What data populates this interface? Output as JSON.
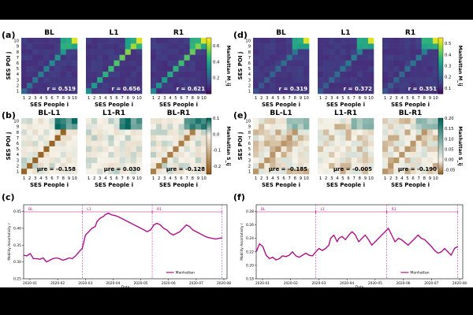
{
  "panels": {
    "a": "(a)",
    "b": "(b)",
    "c": "(c)",
    "d": "(d)",
    "e": "(e)",
    "f": "(f)"
  },
  "colors": {
    "diverging_neg": "#8c510a",
    "diverging_mid": "#f6f2e8",
    "diverging_pos": "#01665e",
    "series": "#b0108a"
  },
  "chart_data": [
    {
      "type": "heatmap",
      "id": "a",
      "panels": [
        {
          "title": "BL",
          "stat_label": "r = 0.519"
        },
        {
          "title": "L1",
          "stat_label": "r = 0.656"
        },
        {
          "title": "R1",
          "stat_label": "r = 0.621"
        }
      ],
      "xlabel": "SES People i",
      "ylabel": "SES POI j",
      "ticks": [
        "1",
        "2",
        "3",
        "4",
        "5",
        "6",
        "7",
        "8",
        "9",
        "10"
      ],
      "colorbar": {
        "label": "Manhattan M_ij",
        "range": [
          0.0,
          0.7
        ],
        "ticks": [
          "0.6",
          "0.4",
          "0.2"
        ],
        "colormap": "viridis"
      }
    },
    {
      "type": "heatmap",
      "id": "b",
      "panels": [
        {
          "title": "BL-L1",
          "stat_label": "μre = -0.158"
        },
        {
          "title": "L1-R1",
          "stat_label": "μre = 0.030"
        },
        {
          "title": "BL-R1",
          "stat_label": "μre = -0.128"
        }
      ],
      "xlabel": "SES People i",
      "ylabel": "SES POI j",
      "ticks": [
        "1",
        "2",
        "3",
        "4",
        "5",
        "6",
        "7",
        "8",
        "9",
        "10"
      ],
      "colorbar": {
        "label": "Manhattan S_ij",
        "range": [
          -0.25,
          0.1
        ],
        "ticks": [
          "0.1",
          "0.0",
          "-0.1",
          "-0.2"
        ],
        "colormap": "BrBG"
      }
    },
    {
      "type": "line",
      "id": "c",
      "series": [
        {
          "name": "Manhattan",
          "points": [
            [
              0,
              0.32
            ],
            [
              4,
              0.318
            ],
            [
              8,
              0.325
            ],
            [
              12,
              0.31
            ],
            [
              16,
              0.31
            ],
            [
              20,
              0.308
            ],
            [
              24,
              0.312
            ],
            [
              28,
              0.3
            ],
            [
              32,
              0.305
            ],
            [
              36,
              0.31
            ],
            [
              40,
              0.312
            ],
            [
              44,
              0.31
            ],
            [
              48,
              0.305
            ],
            [
              52,
              0.308
            ],
            [
              56,
              0.312
            ],
            [
              60,
              0.31
            ],
            [
              64,
              0.318
            ],
            [
              68,
              0.33
            ],
            [
              72,
              0.34
            ],
            [
              74,
              0.36
            ],
            [
              76,
              0.38
            ],
            [
              80,
              0.39
            ],
            [
              84,
              0.4
            ],
            [
              88,
              0.405
            ],
            [
              90,
              0.42
            ],
            [
              94,
              0.43
            ],
            [
              98,
              0.435
            ],
            [
              100,
              0.44
            ],
            [
              104,
              0.445
            ],
            [
              108,
              0.44
            ],
            [
              112,
              0.438
            ],
            [
              116,
              0.435
            ],
            [
              120,
              0.43
            ],
            [
              124,
              0.425
            ],
            [
              128,
              0.42
            ],
            [
              132,
              0.415
            ],
            [
              136,
              0.41
            ],
            [
              140,
              0.405
            ],
            [
              144,
              0.4
            ],
            [
              148,
              0.395
            ],
            [
              152,
              0.39
            ],
            [
              156,
              0.395
            ],
            [
              160,
              0.41
            ],
            [
              164,
              0.415
            ],
            [
              168,
              0.41
            ],
            [
              172,
              0.4
            ],
            [
              176,
              0.395
            ],
            [
              180,
              0.385
            ],
            [
              184,
              0.38
            ],
            [
              188,
              0.385
            ],
            [
              192,
              0.39
            ],
            [
              196,
              0.4
            ],
            [
              200,
              0.41
            ],
            [
              204,
              0.405
            ],
            [
              208,
              0.395
            ],
            [
              212,
              0.39
            ],
            [
              216,
              0.385
            ],
            [
              220,
              0.38
            ],
            [
              224,
              0.375
            ],
            [
              228,
              0.372
            ],
            [
              232,
              0.37
            ],
            [
              236,
              0.368
            ],
            [
              240,
              0.37
            ],
            [
              244,
              0.372
            ]
          ]
        }
      ],
      "x_range": [
        0,
        250
      ],
      "y_range": [
        0.25,
        0.47
      ],
      "ytick_labels": [
        "0.45",
        "0.40",
        "0.35",
        "0.30",
        "0.25"
      ],
      "xtick_labels": [
        "2020-01",
        "2020-02",
        "2020-03",
        "2020-04",
        "2020-05",
        "2020-06",
        "2020-07",
        "2020-08"
      ],
      "xlabel": "Date",
      "ylabel": "Mobility Assortativity r",
      "phases": [
        {
          "label": "BL",
          "start": 0,
          "end": 72
        },
        {
          "label": "L1",
          "start": 72,
          "end": 158
        },
        {
          "label": "R1",
          "start": 158,
          "end": 244
        }
      ],
      "legend": "Manhattan"
    },
    {
      "type": "heatmap",
      "id": "d",
      "panels": [
        {
          "title": "BL",
          "stat_label": "r = 0.319"
        },
        {
          "title": "L1",
          "stat_label": "r = 0.372"
        },
        {
          "title": "R1",
          "stat_label": "r = 0.351"
        }
      ],
      "xlabel": "SES People i",
      "ylabel": "SES POI j",
      "ticks": [
        "1",
        "2",
        "3",
        "4",
        "5",
        "6",
        "7",
        "8",
        "9",
        "10"
      ],
      "colorbar": {
        "label": "Manhattan M_ij",
        "range": [
          0.05,
          0.55
        ],
        "ticks": [
          "0.5",
          "0.4",
          "0.3",
          "0.2",
          "0.1"
        ],
        "colormap": "viridis"
      }
    },
    {
      "type": "heatmap",
      "id": "e",
      "panels": [
        {
          "title": "BL-L1",
          "stat_label": "μre = -0.185"
        },
        {
          "title": "L1-R1",
          "stat_label": "μre = -0.005"
        },
        {
          "title": "BL-R1",
          "stat_label": "μre = -0.190"
        }
      ],
      "xlabel": "SES People i",
      "ylabel": "SES POI j",
      "ticks": [
        "1",
        "2",
        "3",
        "4",
        "5",
        "6",
        "7",
        "8",
        "9",
        "10"
      ],
      "colorbar": {
        "label": "Manhattan S_ij",
        "range": [
          -0.07,
          0.2
        ],
        "ticks": [
          "0.20",
          "0.15",
          "0.10",
          "0.05",
          "0.00",
          "-0.05"
        ],
        "colormap": "BrBG"
      }
    },
    {
      "type": "line",
      "id": "f",
      "series": [
        {
          "name": "Manhattan",
          "points": [
            [
              0,
              0.22
            ],
            [
              4,
              0.232
            ],
            [
              8,
              0.228
            ],
            [
              12,
              0.215
            ],
            [
              16,
              0.21
            ],
            [
              20,
              0.212
            ],
            [
              24,
              0.208
            ],
            [
              28,
              0.21
            ],
            [
              32,
              0.214
            ],
            [
              36,
              0.213
            ],
            [
              40,
              0.215
            ],
            [
              44,
              0.22
            ],
            [
              48,
              0.214
            ],
            [
              52,
              0.212
            ],
            [
              56,
              0.215
            ],
            [
              60,
              0.218
            ],
            [
              64,
              0.215
            ],
            [
              68,
              0.214
            ],
            [
              72,
              0.22
            ],
            [
              76,
              0.225
            ],
            [
              80,
              0.222
            ],
            [
              84,
              0.225
            ],
            [
              88,
              0.23
            ],
            [
              90,
              0.24
            ],
            [
              94,
              0.245
            ],
            [
              98,
              0.235
            ],
            [
              100,
              0.24
            ],
            [
              104,
              0.243
            ],
            [
              108,
              0.238
            ],
            [
              112,
              0.245
            ],
            [
              116,
              0.25
            ],
            [
              120,
              0.245
            ],
            [
              124,
              0.235
            ],
            [
              128,
              0.24
            ],
            [
              132,
              0.245
            ],
            [
              136,
              0.238
            ],
            [
              140,
              0.23
            ],
            [
              144,
              0.235
            ],
            [
              148,
              0.24
            ],
            [
              152,
              0.245
            ],
            [
              156,
              0.25
            ],
            [
              160,
              0.255
            ],
            [
              164,
              0.245
            ],
            [
              168,
              0.235
            ],
            [
              172,
              0.24
            ],
            [
              176,
              0.238
            ],
            [
              180,
              0.234
            ],
            [
              184,
              0.23
            ],
            [
              188,
              0.235
            ],
            [
              192,
              0.24
            ],
            [
              196,
              0.245
            ],
            [
              200,
              0.24
            ],
            [
              204,
              0.238
            ],
            [
              208,
              0.233
            ],
            [
              212,
              0.228
            ],
            [
              216,
              0.222
            ],
            [
              220,
              0.218
            ],
            [
              224,
              0.22
            ],
            [
              228,
              0.225
            ],
            [
              232,
              0.22
            ],
            [
              236,
              0.215
            ],
            [
              240,
              0.225
            ],
            [
              244,
              0.228
            ]
          ]
        }
      ],
      "x_range": [
        0,
        250
      ],
      "y_range": [
        0.18,
        0.29
      ],
      "ytick_labels": [
        "0.28",
        "0.26",
        "0.24",
        "0.22",
        "0.20",
        "0.18"
      ],
      "xtick_labels": [
        "2020-01",
        "2020-02",
        "2020-03",
        "2020-04",
        "2020-05",
        "2020-06",
        "2020-07",
        "2020-08"
      ],
      "xlabel": "Date",
      "ylabel": "Mobility Assortativity r",
      "phases": [
        {
          "label": "BL",
          "start": 0,
          "end": 72
        },
        {
          "label": "L1",
          "start": 72,
          "end": 158
        },
        {
          "label": "R1",
          "start": 158,
          "end": 244
        }
      ],
      "legend": "Manhattan"
    }
  ]
}
